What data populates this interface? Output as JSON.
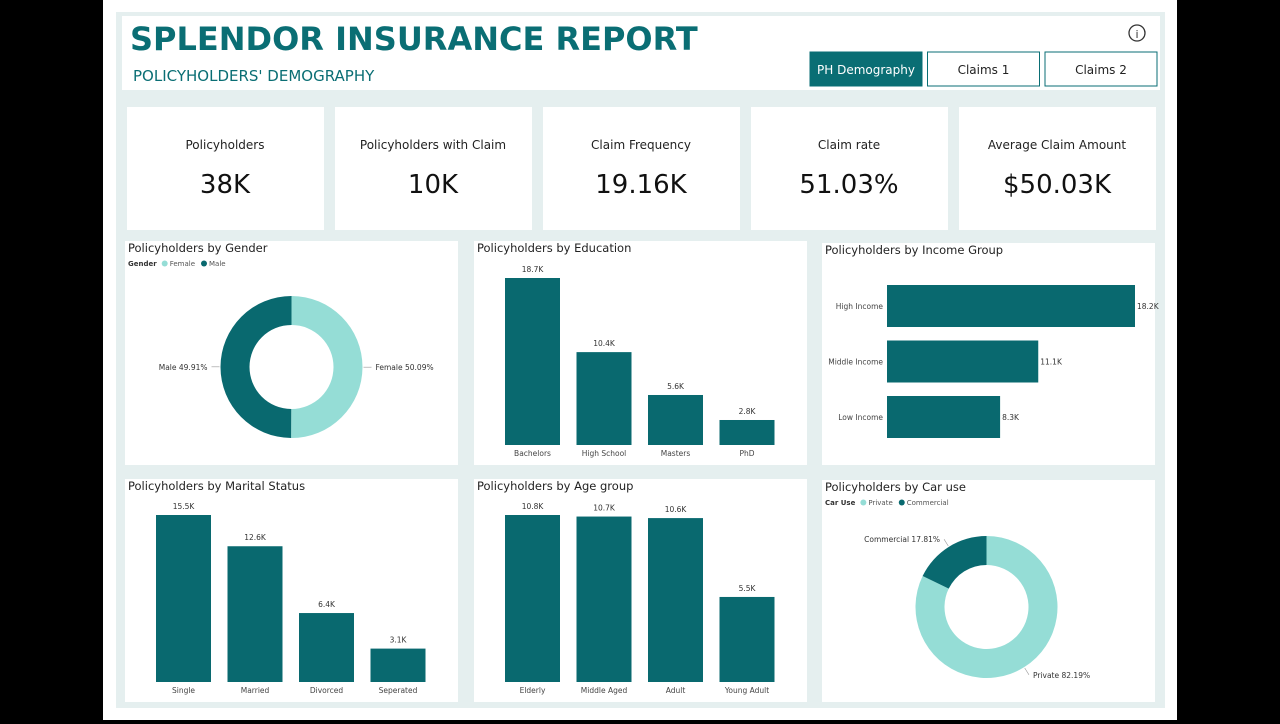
{
  "header": {
    "title": "SPLENDOR INSURANCE REPORT",
    "subtitle": "POLICYHOLDERS' DEMOGRAPHY"
  },
  "tabs": [
    "PH Demography",
    "Claims 1",
    "Claims 2"
  ],
  "kpis": [
    {
      "label": "Policyholders",
      "value": "38K"
    },
    {
      "label": "Policyholders with Claim",
      "value": "10K"
    },
    {
      "label": "Claim Frequency",
      "value": "19.16K"
    },
    {
      "label": "Claim rate",
      "value": "51.03%"
    },
    {
      "label": "Average Claim Amount",
      "value": "$50.03K"
    }
  ],
  "chart_data": [
    {
      "type": "pie",
      "title": "Policyholders by Gender",
      "legend_title": "Gender",
      "categories": [
        "Female",
        "Male"
      ],
      "values": [
        50.09,
        49.91
      ],
      "value_labels": [
        "50.09%",
        "49.91%"
      ],
      "colors": [
        "#95ddd6",
        "#09696f"
      ]
    },
    {
      "type": "bar",
      "title": "Policyholders by Education",
      "categories": [
        "Bachelors",
        "High School",
        "Masters",
        "PhD"
      ],
      "values": [
        18700,
        10400,
        5600,
        2800
      ],
      "value_labels": [
        "18.7K",
        "10.4K",
        "5.6K",
        "2.8K"
      ],
      "color": "#09696f"
    },
    {
      "type": "bar",
      "orientation": "horizontal",
      "title": "Policyholders by Income Group",
      "categories": [
        "High Income",
        "Middle Income",
        "Low Income"
      ],
      "values": [
        18200,
        11100,
        8300
      ],
      "value_labels": [
        "18.2K",
        "11.1K",
        "8.3K"
      ],
      "color": "#09696f"
    },
    {
      "type": "bar",
      "title": "Policyholders by Marital Status",
      "categories": [
        "Single",
        "Married",
        "Divorced",
        "Seperated"
      ],
      "values": [
        15500,
        12600,
        6400,
        3100
      ],
      "value_labels": [
        "15.5K",
        "12.6K",
        "6.4K",
        "3.1K"
      ],
      "color": "#09696f"
    },
    {
      "type": "bar",
      "title": "Policyholders by Age group",
      "categories": [
        "Elderly",
        "Middle Aged",
        "Adult",
        "Young Adult"
      ],
      "values": [
        10800,
        10700,
        10600,
        5500
      ],
      "value_labels": [
        "10.8K",
        "10.7K",
        "10.6K",
        "5.5K"
      ],
      "color": "#09696f"
    },
    {
      "type": "pie",
      "title": "Policyholders by Car use",
      "legend_title": "Car Use",
      "categories": [
        "Private",
        "Commercial"
      ],
      "values": [
        82.19,
        17.81
      ],
      "value_labels": [
        "82.19%",
        "17.81%"
      ],
      "colors": [
        "#95ddd6",
        "#09696f"
      ]
    }
  ]
}
